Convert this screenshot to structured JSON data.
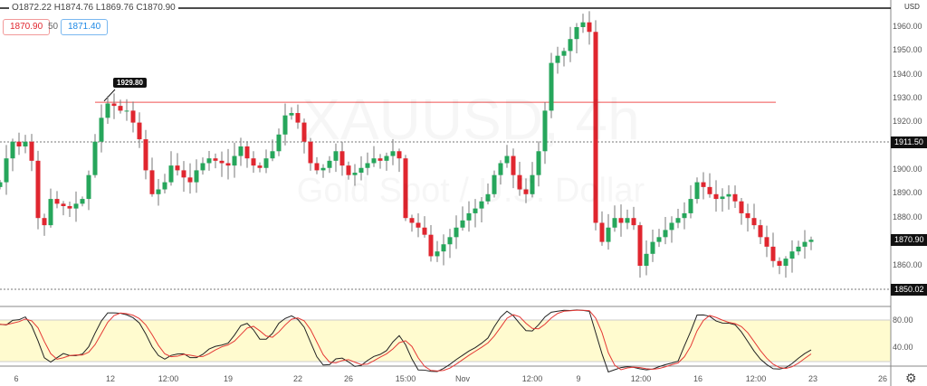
{
  "legend": {
    "ohlc": "O1872.22 H1874.76 L1869.76 C1870.90",
    "bid": "1870.90",
    "spread": "50",
    "ask": "1871.40"
  },
  "watermark": {
    "symbol": "XAUUSD, 4h",
    "name": "Gold Spot / U.S. Dollar"
  },
  "currency": "USD",
  "colors": {
    "up": "#26a65b",
    "down": "#e0262f",
    "hline": "#f05050",
    "stoch_k": "#222222",
    "stoch_d": "#e53935",
    "band": "#fffbcf"
  },
  "annotation": {
    "label": "1929.80",
    "level": 1928.5
  },
  "price_tags": {
    "dotted_high": "1911.50",
    "last": "1870.90",
    "dotted_low": "1850.02"
  },
  "stoch_axis": [
    "80.00",
    "40.00"
  ],
  "chart_data": {
    "type": "candlestick",
    "ylim": [
      1849,
      1968
    ],
    "y_ticks": [
      "1960.00",
      "1950.00",
      "1940.00",
      "1930.00",
      "1920.00",
      "1900.00",
      "1890.00",
      "1880.00",
      "1860.00"
    ],
    "x_ticks": [
      "6",
      "12",
      "12:00",
      "19",
      "22",
      "26",
      "15:00",
      "Nov",
      "12:00",
      "9",
      "12:00",
      "16",
      "12:00",
      "23",
      "26"
    ],
    "closes": [
      1895,
      1905,
      1912,
      1910,
      1912,
      1904,
      1880,
      1877,
      1888,
      1886,
      1885,
      1884,
      1886,
      1888,
      1898,
      1912,
      1922,
      1928,
      1927,
      1925,
      1925,
      1920,
      1913,
      1900,
      1890,
      1892,
      1895,
      1902,
      1900,
      1897,
      1895,
      1900,
      1903,
      1905,
      1904,
      1903,
      1902,
      1906,
      1910,
      1905,
      1902,
      1901,
      1905,
      1908,
      1915,
      1923,
      1924,
      1920,
      1912,
      1903,
      1900,
      1901,
      1904,
      1908,
      1902,
      1898,
      1899,
      1901,
      1903,
      1905,
      1904,
      1906,
      1908,
      1905,
      1880,
      1878,
      1876,
      1873,
      1864,
      1866,
      1869,
      1872,
      1876,
      1879,
      1882,
      1884,
      1887,
      1890,
      1898,
      1903,
      1906,
      1898,
      1892,
      1890,
      1898,
      1908,
      1925,
      1945,
      1948,
      1950,
      1955,
      1960,
      1962,
      1958,
      1878,
      1870,
      1876,
      1880,
      1878,
      1880,
      1877,
      1860,
      1865,
      1870,
      1872,
      1875,
      1878,
      1880,
      1882,
      1888,
      1895,
      1893,
      1890,
      1888,
      1889,
      1890,
      1887,
      1882,
      1880,
      1877,
      1872,
      1868,
      1862,
      1860,
      1863,
      1866,
      1868,
      1870,
      1870.9
    ],
    "stochastic": {
      "upper": 80,
      "lower": 20,
      "ylim": [
        0,
        100
      ]
    }
  }
}
